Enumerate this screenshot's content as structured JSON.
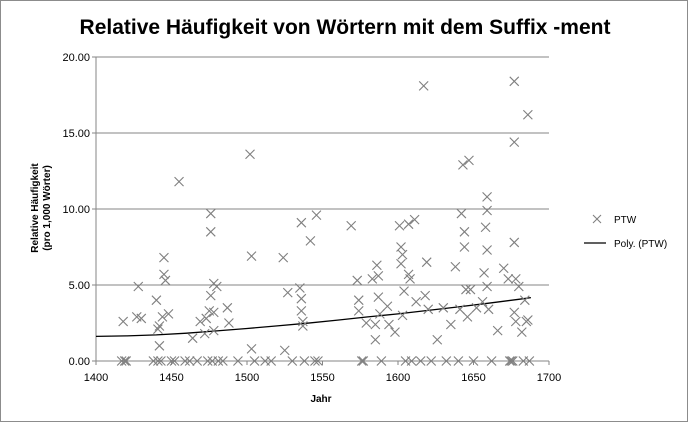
{
  "chart_data": {
    "type": "scatter",
    "title": "Relative Häufigkeit von Wörtern mit dem Suffix -ment",
    "xlabel": "Jahr",
    "ylabel_lines": [
      "Relative Häufigkeit",
      "(pro 1,000 Wörter)"
    ],
    "xlim": [
      1400,
      1700
    ],
    "ylim": [
      0,
      20
    ],
    "x_ticks": [
      1400,
      1450,
      1500,
      1550,
      1600,
      1650,
      1700
    ],
    "y_ticks": [
      0,
      5,
      10,
      15,
      20
    ],
    "y_tick_labels": [
      "0.00",
      "5.00",
      "10.00",
      "15.00",
      "20.00"
    ],
    "grid": "horizontal",
    "legend_position": "right",
    "colors": {
      "marker": "#7f7f7f",
      "trend": "#000000",
      "grid": "#868686"
    },
    "series": [
      {
        "name": "PTW",
        "kind": "scatter",
        "marker": "x",
        "points": [
          [
            1417,
            0
          ],
          [
            1419,
            0
          ],
          [
            1420,
            0
          ],
          [
            1418,
            2.6
          ],
          [
            1427,
            2.9
          ],
          [
            1430,
            2.8
          ],
          [
            1428,
            4.9
          ],
          [
            1438,
            0
          ],
          [
            1441,
            0
          ],
          [
            1443,
            0
          ],
          [
            1440,
            4.0
          ],
          [
            1441,
            2.1
          ],
          [
            1442,
            2.3
          ],
          [
            1442,
            1.0
          ],
          [
            1444,
            2.9
          ],
          [
            1445,
            5.7
          ],
          [
            1445,
            6.8
          ],
          [
            1446,
            5.3
          ],
          [
            1448,
            3.1
          ],
          [
            1450,
            0
          ],
          [
            1452,
            0
          ],
          [
            1455,
            11.8
          ],
          [
            1459,
            0
          ],
          [
            1462,
            0
          ],
          [
            1464,
            1.5
          ],
          [
            1467,
            0
          ],
          [
            1469,
            2.6
          ],
          [
            1472,
            1.8
          ],
          [
            1473,
            2.8
          ],
          [
            1474,
            0
          ],
          [
            1475,
            3.3
          ],
          [
            1476,
            9.7
          ],
          [
            1476,
            8.5
          ],
          [
            1476,
            4.3
          ],
          [
            1477,
            0
          ],
          [
            1478,
            2.0
          ],
          [
            1478,
            3.2
          ],
          [
            1478,
            5.1
          ],
          [
            1480,
            4.9
          ],
          [
            1481,
            0
          ],
          [
            1484,
            0
          ],
          [
            1487,
            3.5
          ],
          [
            1488,
            2.5
          ],
          [
            1494,
            0
          ],
          [
            1502,
            13.6
          ],
          [
            1503,
            6.9
          ],
          [
            1503,
            0.8
          ],
          [
            1505,
            0
          ],
          [
            1512,
            0
          ],
          [
            1516,
            0
          ],
          [
            1524,
            6.8
          ],
          [
            1525,
            0.7
          ],
          [
            1527,
            4.5
          ],
          [
            1530,
            0
          ],
          [
            1535,
            4.8
          ],
          [
            1536,
            9.1
          ],
          [
            1536,
            4.1
          ],
          [
            1536,
            3.3
          ],
          [
            1537,
            2.6
          ],
          [
            1537,
            2.3
          ],
          [
            1538,
            0
          ],
          [
            1542,
            7.9
          ],
          [
            1545,
            0
          ],
          [
            1546,
            9.6
          ],
          [
            1547,
            0
          ],
          [
            1569,
            8.9
          ],
          [
            1573,
            5.3
          ],
          [
            1574,
            4.0
          ],
          [
            1574,
            3.3
          ],
          [
            1576,
            0
          ],
          [
            1577,
            0
          ],
          [
            1579,
            2.5
          ],
          [
            1583,
            5.4
          ],
          [
            1585,
            1.4
          ],
          [
            1585,
            2.4
          ],
          [
            1586,
            6.3
          ],
          [
            1587,
            5.6
          ],
          [
            1587,
            4.2
          ],
          [
            1588,
            3.1
          ],
          [
            1589,
            0
          ],
          [
            1593,
            3.6
          ],
          [
            1594,
            2.4
          ],
          [
            1598,
            1.9
          ],
          [
            1601,
            8.9
          ],
          [
            1602,
            7.5
          ],
          [
            1602,
            6.4
          ],
          [
            1603,
            7.0
          ],
          [
            1603,
            3.0
          ],
          [
            1604,
            4.6
          ],
          [
            1605,
            0
          ],
          [
            1607,
            9.0
          ],
          [
            1607,
            5.7
          ],
          [
            1608,
            5.4
          ],
          [
            1609,
            0
          ],
          [
            1611,
            9.3
          ],
          [
            1612,
            3.9
          ],
          [
            1615,
            0
          ],
          [
            1617,
            18.1
          ],
          [
            1618,
            4.3
          ],
          [
            1619,
            6.5
          ],
          [
            1620,
            3.4
          ],
          [
            1622,
            0
          ],
          [
            1626,
            1.4
          ],
          [
            1630,
            3.5
          ],
          [
            1632,
            0
          ],
          [
            1635,
            2.4
          ],
          [
            1638,
            6.2
          ],
          [
            1640,
            0
          ],
          [
            1641,
            3.4
          ],
          [
            1642,
            9.7
          ],
          [
            1643,
            12.9
          ],
          [
            1644,
            8.5
          ],
          [
            1644,
            7.5
          ],
          [
            1645,
            4.7
          ],
          [
            1646,
            2.9
          ],
          [
            1647,
            13.2
          ],
          [
            1648,
            4.7
          ],
          [
            1650,
            0
          ],
          [
            1652,
            3.5
          ],
          [
            1656,
            3.9
          ],
          [
            1657,
            5.8
          ],
          [
            1658,
            8.8
          ],
          [
            1659,
            10.8
          ],
          [
            1659,
            9.9
          ],
          [
            1659,
            7.3
          ],
          [
            1659,
            4.9
          ],
          [
            1660,
            3.4
          ],
          [
            1662,
            0
          ],
          [
            1666,
            2.0
          ],
          [
            1670,
            6.1
          ],
          [
            1673,
            5.4
          ],
          [
            1674,
            0
          ],
          [
            1675,
            0
          ],
          [
            1676,
            0
          ],
          [
            1677,
            18.4
          ],
          [
            1677,
            14.4
          ],
          [
            1677,
            7.8
          ],
          [
            1677,
            3.2
          ],
          [
            1678,
            2.6
          ],
          [
            1678,
            5.4
          ],
          [
            1680,
            4.9
          ],
          [
            1682,
            1.9
          ],
          [
            1683,
            0
          ],
          [
            1684,
            4.0
          ],
          [
            1685,
            2.6
          ],
          [
            1686,
            16.2
          ],
          [
            1686,
            2.7
          ],
          [
            1687,
            0
          ]
        ]
      },
      {
        "name": "Poly. (PTW)",
        "kind": "trendline",
        "points": [
          [
            1400,
            1.62
          ],
          [
            1420,
            1.65
          ],
          [
            1440,
            1.72
          ],
          [
            1460,
            1.83
          ],
          [
            1480,
            1.98
          ],
          [
            1500,
            2.14
          ],
          [
            1520,
            2.31
          ],
          [
            1540,
            2.49
          ],
          [
            1560,
            2.69
          ],
          [
            1580,
            2.9
          ],
          [
            1600,
            3.1
          ],
          [
            1620,
            3.33
          ],
          [
            1640,
            3.56
          ],
          [
            1660,
            3.8
          ],
          [
            1680,
            4.06
          ],
          [
            1688,
            4.17
          ]
        ]
      }
    ]
  }
}
